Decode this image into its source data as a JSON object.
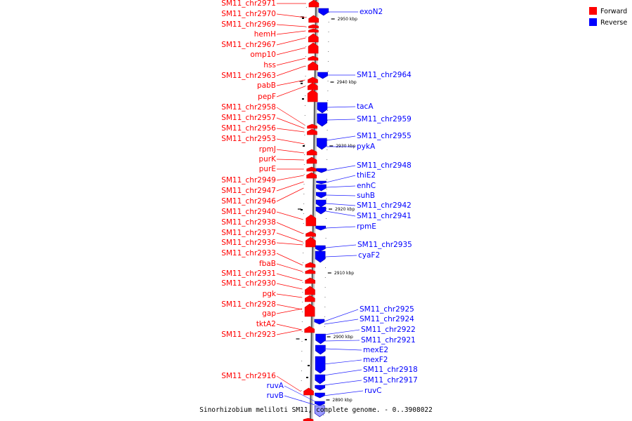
{
  "legend": [
    {
      "label": "Forward",
      "color": "#ff0000"
    },
    {
      "label": "Reverse",
      "color": "#0000ff"
    }
  ],
  "caption": "Sinorhizobium meliloti SM11, complete genome. - 0..3908022",
  "ticks": [
    "2950 kbp",
    "2940 kbp",
    "2930 kbp",
    "2920 kbp",
    "2910 kbp",
    "2900 kbp",
    "2890 kbp"
  ],
  "forward_labels": [
    "SM11_chr2971",
    "SM11_chr2970",
    "SM11_chr2969",
    "hemH",
    "SM11_chr2967",
    "omp10",
    "hss",
    "SM11_chr2963",
    "pabB",
    "pepF",
    "SM11_chr2958",
    "SM11_chr2957",
    "SM11_chr2956",
    "SM11_chr2953",
    "rpmJ",
    "purK",
    "purE",
    "SM11_chr2949",
    "SM11_chr2947",
    "SM11_chr2946",
    "SM11_chr2940",
    "SM11_chr2938",
    "SM11_chr2937",
    "SM11_chr2936",
    "SM11_chr2933",
    "fbaB",
    "SM11_chr2931",
    "SM11_chr2930",
    "pgk",
    "SM11_chr2928",
    "gap",
    "tktA2",
    "SM11_chr2923",
    "SM11_chr2916"
  ],
  "reverse_labels_left": [
    "ruvA",
    "ruvB"
  ],
  "reverse_labels": [
    "exoN2",
    "SM11_chr2964",
    "tacA",
    "SM11_chr2959",
    "SM11_chr2955",
    "pykA",
    "SM11_chr2948",
    "thiE2",
    "enhC",
    "suhB",
    "SM11_chr2942",
    "SM11_chr2941",
    "rpmE",
    "SM11_chr2935",
    "cyaF2",
    "SM11_chr2925",
    "SM11_chr2924",
    "SM11_chr2922",
    "SM11_chr2921",
    "mexE2",
    "mexF2",
    "SM11_chr2918",
    "SM11_chr2917",
    "ruvC"
  ]
}
